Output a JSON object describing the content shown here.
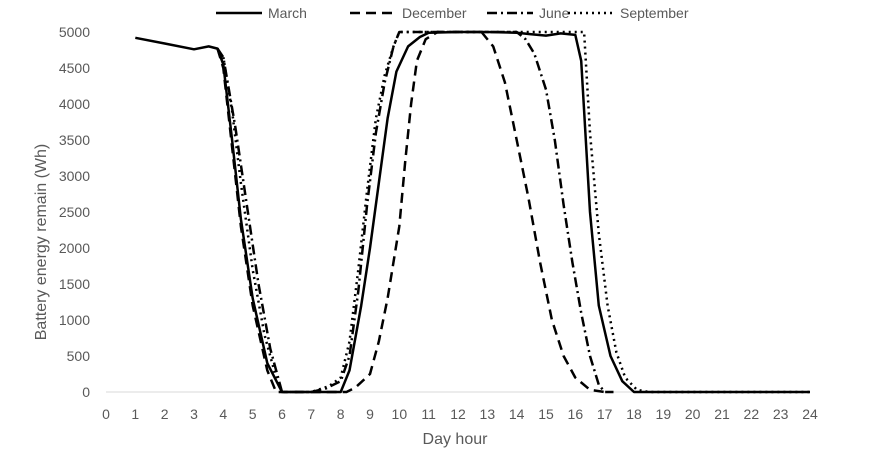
{
  "chart_data": {
    "type": "line",
    "title": "",
    "xlabel": "Day hour",
    "ylabel": "Battery energy remain (Wh)",
    "xlim": [
      0,
      24
    ],
    "ylim": [
      0,
      5000
    ],
    "x_ticks": [
      "0",
      "1",
      "2",
      "3",
      "4",
      "5",
      "6",
      "7",
      "8",
      "9",
      "10",
      "11",
      "12",
      "13",
      "14",
      "15",
      "16",
      "17",
      "18",
      "19",
      "20",
      "21",
      "22",
      "23",
      "24"
    ],
    "y_ticks": [
      "0",
      "500",
      "1000",
      "1500",
      "2000",
      "2500",
      "3000",
      "3500",
      "4000",
      "4500",
      "5000"
    ],
    "grid": false,
    "legend_position": "top",
    "series": [
      {
        "name": "March",
        "dash": "solid",
        "points": [
          [
            1,
            4920
          ],
          [
            2,
            4840
          ],
          [
            3,
            4760
          ],
          [
            3.5,
            4800
          ],
          [
            3.8,
            4770
          ],
          [
            4,
            4550
          ],
          [
            4.3,
            3500
          ],
          [
            4.6,
            2400
          ],
          [
            5,
            1300
          ],
          [
            5.5,
            400
          ],
          [
            6,
            0
          ],
          [
            8,
            0
          ],
          [
            8.3,
            300
          ],
          [
            8.7,
            1200
          ],
          [
            9,
            2000
          ],
          [
            9.3,
            2900
          ],
          [
            9.6,
            3800
          ],
          [
            9.9,
            4450
          ],
          [
            10.3,
            4800
          ],
          [
            10.7,
            4930
          ],
          [
            11,
            4990
          ],
          [
            12,
            5000
          ],
          [
            13,
            5000
          ],
          [
            14,
            4990
          ],
          [
            14.5,
            4970
          ],
          [
            15,
            4950
          ],
          [
            15.5,
            4980
          ],
          [
            16,
            4960
          ],
          [
            16.2,
            4600
          ],
          [
            16.5,
            2500
          ],
          [
            16.8,
            1200
          ],
          [
            17.2,
            500
          ],
          [
            17.6,
            150
          ],
          [
            18,
            0
          ],
          [
            24,
            0
          ]
        ]
      },
      {
        "name": "December",
        "dash": "dashed",
        "points": [
          [
            3.8,
            4770
          ],
          [
            4,
            4500
          ],
          [
            4.3,
            3400
          ],
          [
            4.6,
            2300
          ],
          [
            5,
            1200
          ],
          [
            5.5,
            300
          ],
          [
            5.8,
            0
          ],
          [
            8.2,
            0
          ],
          [
            8.5,
            60
          ],
          [
            9,
            250
          ],
          [
            9.3,
            700
          ],
          [
            9.6,
            1300
          ],
          [
            10,
            2300
          ],
          [
            10.2,
            3200
          ],
          [
            10.4,
            4000
          ],
          [
            10.6,
            4600
          ],
          [
            10.9,
            4900
          ],
          [
            11.3,
            5000
          ],
          [
            12,
            5000
          ],
          [
            12.8,
            5000
          ],
          [
            13.2,
            4800
          ],
          [
            13.6,
            4300
          ],
          [
            14,
            3500
          ],
          [
            14.4,
            2700
          ],
          [
            14.8,
            1800
          ],
          [
            15.2,
            1000
          ],
          [
            15.6,
            500
          ],
          [
            16,
            200
          ],
          [
            16.5,
            30
          ],
          [
            17,
            0
          ]
        ]
      },
      {
        "name": "June",
        "dash": "dashdot",
        "points": [
          [
            3.8,
            4770
          ],
          [
            4,
            4650
          ],
          [
            4.4,
            3700
          ],
          [
            4.8,
            2600
          ],
          [
            5.2,
            1500
          ],
          [
            5.6,
            600
          ],
          [
            6,
            0
          ],
          [
            7,
            0
          ],
          [
            7.5,
            50
          ],
          [
            8,
            150
          ],
          [
            8.3,
            500
          ],
          [
            8.6,
            1400
          ],
          [
            8.9,
            2600
          ],
          [
            9.2,
            3600
          ],
          [
            9.5,
            4300
          ],
          [
            9.8,
            4800
          ],
          [
            10,
            5000
          ],
          [
            10.5,
            5000
          ],
          [
            12,
            5000
          ],
          [
            14,
            5000
          ],
          [
            14.3,
            4900
          ],
          [
            14.6,
            4700
          ],
          [
            15,
            4200
          ],
          [
            15.3,
            3500
          ],
          [
            15.6,
            2600
          ],
          [
            15.9,
            1800
          ],
          [
            16.2,
            1100
          ],
          [
            16.5,
            500
          ],
          [
            16.8,
            100
          ],
          [
            17,
            0
          ],
          [
            17.3,
            0
          ]
        ]
      },
      {
        "name": "September",
        "dash": "dotted",
        "points": [
          [
            4,
            4650
          ],
          [
            4.3,
            3900
          ],
          [
            4.6,
            2900
          ],
          [
            5,
            1700
          ],
          [
            5.4,
            800
          ],
          [
            5.8,
            200
          ],
          [
            6,
            0
          ],
          [
            7,
            0
          ],
          [
            7.6,
            80
          ],
          [
            8,
            200
          ],
          [
            8.3,
            700
          ],
          [
            8.6,
            1700
          ],
          [
            8.9,
            2800
          ],
          [
            9.2,
            3800
          ],
          [
            9.5,
            4400
          ],
          [
            9.8,
            4800
          ],
          [
            10,
            5000
          ],
          [
            11,
            5000
          ],
          [
            13,
            5000
          ],
          [
            16,
            5000
          ],
          [
            16.3,
            5000
          ],
          [
            16.5,
            3600
          ],
          [
            16.8,
            2200
          ],
          [
            17.1,
            1200
          ],
          [
            17.4,
            550
          ],
          [
            17.7,
            200
          ],
          [
            18.1,
            30
          ],
          [
            18.5,
            0
          ],
          [
            24,
            0
          ]
        ]
      }
    ]
  }
}
